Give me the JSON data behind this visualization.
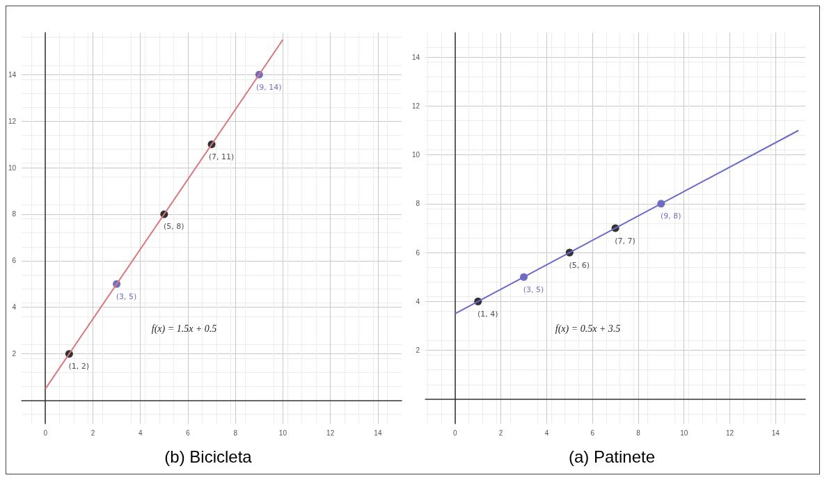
{
  "chart_data": [
    {
      "type": "scatter",
      "title": "(b) Bicicleta",
      "xlim": [
        -1,
        15
      ],
      "ylim": [
        -1,
        15.8
      ],
      "xticks": [
        0,
        2,
        4,
        6,
        8,
        10,
        12,
        14
      ],
      "yticks": [
        2,
        4,
        6,
        8,
        10,
        12,
        14
      ],
      "grid": true,
      "marker": "circle",
      "line_style": "solid",
      "annotations": [
        "f(x) = 1.5x + 0.5"
      ],
      "series": [
        {
          "type": "line",
          "marker": "none",
          "color": "#d9777a",
          "x": [
            0,
            10
          ],
          "values": [
            0.5,
            15.5
          ]
        },
        {
          "x": [
            1,
            3,
            5,
            7,
            9
          ],
          "values": [
            2,
            5,
            8,
            11,
            14
          ],
          "colors": [
            "#000000",
            "#4b4bb4",
            "#000000",
            "#000000",
            "#4b4bb4"
          ],
          "value_labels": [
            "(1, 2)",
            "(3, 5)",
            "(5, 8)",
            "(7, 11)",
            "(9, 14)"
          ]
        }
      ]
    },
    {
      "type": "scatter",
      "title": "(a) Patinete",
      "xlim": [
        -1.3,
        15.3
      ],
      "ylim": [
        -1,
        15
      ],
      "xticks": [
        0,
        2,
        4,
        6,
        8,
        10,
        12,
        14
      ],
      "yticks": [
        2,
        4,
        6,
        8,
        10,
        12,
        14
      ],
      "grid": true,
      "marker": "circle",
      "line_style": "solid",
      "annotations": [
        "f(x) = 0.5x + 3.5"
      ],
      "series": [
        {
          "type": "line",
          "marker": "none",
          "color": "#6a6ac8",
          "x": [
            0,
            15
          ],
          "values": [
            3.5,
            11
          ]
        },
        {
          "x": [
            1,
            3,
            5,
            7,
            9
          ],
          "values": [
            4,
            5,
            6,
            7,
            8
          ],
          "colors": [
            "#000000",
            "#4b4bb4",
            "#000000",
            "#000000",
            "#4b4bb4"
          ],
          "value_labels": [
            "(1, 4)",
            "(3, 5)",
            "(5, 6)",
            "(7, 7)",
            "(9, 8)"
          ]
        }
      ]
    }
  ]
}
